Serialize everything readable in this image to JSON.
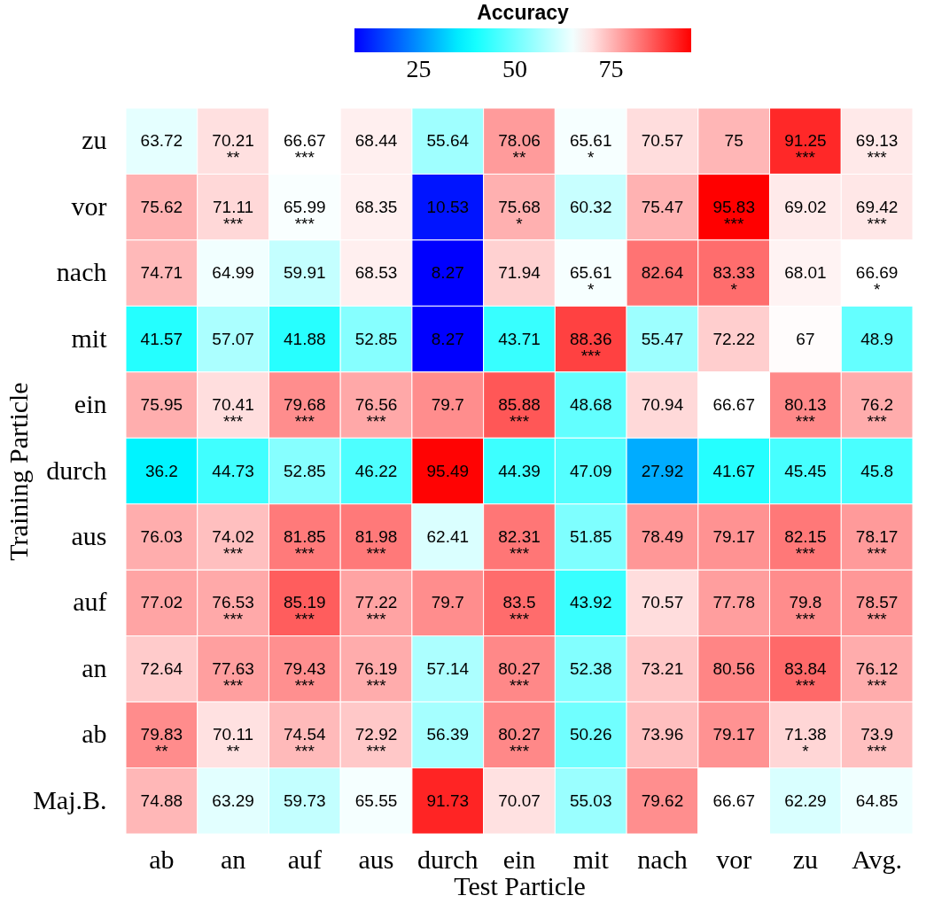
{
  "chart_data": {
    "type": "heatmap",
    "xlabel": "Test Particle",
    "ylabel": "Training Particle",
    "clabel": "Accuracy",
    "categories": [
      "ab",
      "an",
      "auf",
      "aus",
      "durch",
      "ein",
      "mit",
      "nach",
      "vor",
      "zu",
      "Avg."
    ],
    "y_categories": [
      "zu",
      "vor",
      "nach",
      "mit",
      "ein",
      "durch",
      "aus",
      "auf",
      "an",
      "ab",
      "Maj.B."
    ],
    "cells": [
      [
        63.72,
        70.21,
        66.67,
        68.44,
        55.64,
        78.06,
        65.61,
        70.57,
        75,
        91.25,
        69.13
      ],
      [
        75.62,
        71.11,
        65.99,
        68.35,
        10.53,
        75.68,
        60.32,
        75.47,
        95.83,
        69.02,
        69.42
      ],
      [
        74.71,
        64.99,
        59.91,
        68.53,
        8.27,
        71.94,
        65.61,
        82.64,
        83.33,
        68.01,
        66.69
      ],
      [
        41.57,
        57.07,
        41.88,
        52.85,
        8.27,
        43.71,
        88.36,
        55.47,
        72.22,
        67,
        48.9
      ],
      [
        75.95,
        70.41,
        79.68,
        76.56,
        79.7,
        85.88,
        48.68,
        70.94,
        66.67,
        80.13,
        76.2
      ],
      [
        36.2,
        44.73,
        52.85,
        46.22,
        95.49,
        44.39,
        47.09,
        27.92,
        41.67,
        45.45,
        45.8
      ],
      [
        76.03,
        74.02,
        81.85,
        81.98,
        62.41,
        82.31,
        51.85,
        78.49,
        79.17,
        82.15,
        78.17
      ],
      [
        77.02,
        76.53,
        85.19,
        77.22,
        79.7,
        83.5,
        43.92,
        70.57,
        77.78,
        79.8,
        78.57
      ],
      [
        72.64,
        77.63,
        79.43,
        76.19,
        57.14,
        80.27,
        52.38,
        73.21,
        80.56,
        83.84,
        76.12
      ],
      [
        79.83,
        70.11,
        74.54,
        72.92,
        56.39,
        80.27,
        50.26,
        73.96,
        79.17,
        71.38,
        73.9
      ],
      [
        74.88,
        63.29,
        59.73,
        65.55,
        91.73,
        70.07,
        55.03,
        79.62,
        66.67,
        62.29,
        64.85
      ]
    ],
    "cell_labels": [
      [
        "63.72",
        "70.21\n**",
        "66.67\n***",
        "68.44",
        "55.64",
        "78.06\n**",
        "65.61\n*",
        "70.57",
        "75",
        "91.25\n***",
        "69.13\n***"
      ],
      [
        "75.62",
        "71.11\n***",
        "65.99\n***",
        "68.35",
        "10.53",
        "75.68\n*",
        "60.32",
        "75.47",
        "95.83\n***",
        "69.02",
        "69.42\n***"
      ],
      [
        "74.71",
        "64.99",
        "59.91",
        "68.53",
        "8.27",
        "71.94",
        "65.61\n*",
        "82.64",
        "83.33\n*",
        "68.01",
        "66.69\n*"
      ],
      [
        "41.57",
        "57.07",
        "41.88",
        "52.85",
        "8.27",
        "43.71",
        "88.36\n***",
        "55.47",
        "72.22",
        "67",
        "48.9"
      ],
      [
        "75.95",
        "70.41\n***",
        "79.68\n***",
        "76.56\n***",
        "79.7",
        "85.88\n***",
        "48.68",
        "70.94",
        "66.67",
        "80.13\n***",
        "76.2\n***"
      ],
      [
        "36.2",
        "44.73",
        "52.85",
        "46.22",
        "95.49",
        "44.39",
        "47.09",
        "27.92",
        "41.67",
        "45.45",
        "45.8"
      ],
      [
        "76.03",
        "74.02\n***",
        "81.85\n***",
        "81.98\n***",
        "62.41",
        "82.31\n***",
        "51.85",
        "78.49",
        "79.17",
        "82.15\n***",
        "78.17\n***"
      ],
      [
        "77.02",
        "76.53\n***",
        "85.19\n***",
        "77.22\n***",
        "79.7",
        "83.5\n***",
        "43.92",
        "70.57",
        "77.78",
        "79.8\n***",
        "78.57\n***"
      ],
      [
        "72.64",
        "77.63\n***",
        "79.43\n***",
        "76.19\n***",
        "57.14",
        "80.27\n***",
        "52.38",
        "73.21",
        "80.56",
        "83.84\n***",
        "76.12\n***"
      ],
      [
        "79.83\n**",
        "70.11\n**",
        "74.54\n***",
        "72.92\n***",
        "56.39",
        "80.27\n***",
        "50.26",
        "73.96",
        "79.17",
        "71.38\n*",
        "73.9\n***"
      ],
      [
        "74.88",
        "63.29",
        "59.73",
        "65.55",
        "91.73",
        "70.07",
        "55.03",
        "79.62",
        "66.67",
        "62.29",
        "64.85"
      ]
    ],
    "clim": [
      8.27,
      95.83
    ],
    "cticks": [
      25,
      50,
      75
    ],
    "colors": [
      "#0000ff",
      "#00ffff",
      "#ffffff",
      "#ff0000"
    ]
  }
}
